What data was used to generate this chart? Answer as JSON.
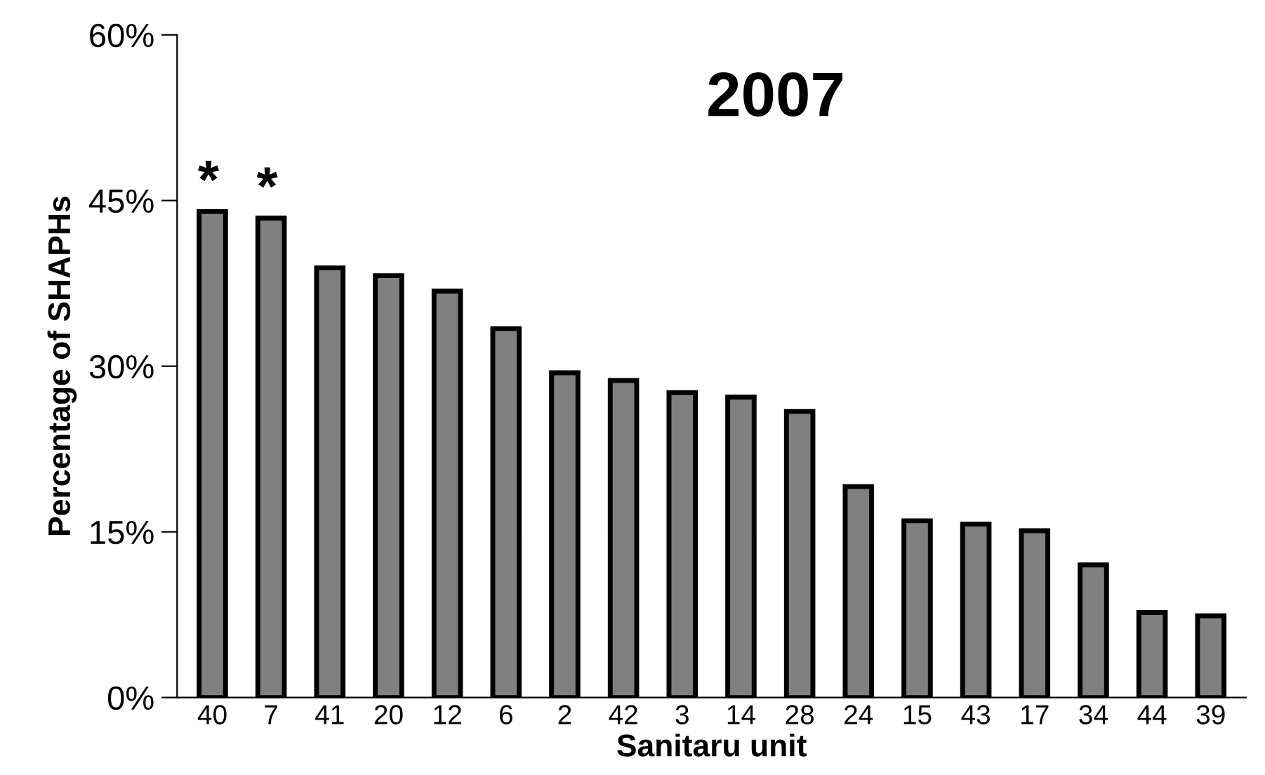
{
  "chart_data": {
    "type": "bar",
    "title": "2007",
    "xlabel": "Sanitaru unit",
    "ylabel": "Percentage of SHAPHs",
    "categories": [
      "40",
      "7",
      "41",
      "20",
      "12",
      "6",
      "2",
      "42",
      "3",
      "14",
      "28",
      "24",
      "15",
      "43",
      "17",
      "34",
      "44",
      "39"
    ],
    "values": [
      44.0,
      43.4,
      38.9,
      38.2,
      36.8,
      33.4,
      29.4,
      28.7,
      27.6,
      27.2,
      25.9,
      19.1,
      16.0,
      15.7,
      15.1,
      12.0,
      7.7,
      7.4
    ],
    "color": "#808080",
    "ylim": [
      0,
      60
    ],
    "yticks": [
      {
        "value": 0,
        "label": "0%"
      },
      {
        "value": 15,
        "label": "15%"
      },
      {
        "value": 30,
        "label": "30%"
      },
      {
        "value": 45,
        "label": "45%"
      },
      {
        "value": 60,
        "label": "60%"
      }
    ],
    "annotations": [
      {
        "text": "*",
        "x": "40",
        "y": 44.0
      },
      {
        "text": "*",
        "x": "7",
        "y": 43.4
      }
    ],
    "grid": false
  }
}
